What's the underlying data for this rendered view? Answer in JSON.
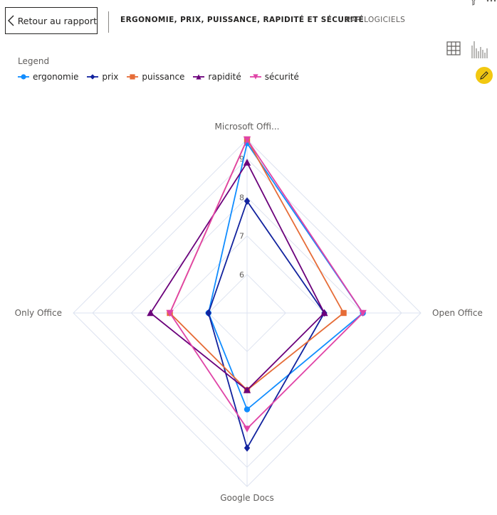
{
  "header": {
    "back_label": "Retour au rapport",
    "title": "ERGONOMIE, PRIX, PUISSANCE, RAPIDITÉ ET SÉCURITÉ",
    "subtitle": "PAR LOGICIELS"
  },
  "legend": {
    "title": "Legend"
  },
  "chart_data": {
    "type": "radar",
    "axes": [
      "Microsoft Offi...",
      "Open Office",
      "Google Docs",
      "Only Office"
    ],
    "ticks": [
      "6",
      "7",
      "8",
      "9"
    ],
    "range": [
      5,
      9.5
    ],
    "series": [
      {
        "name": "ergonomie",
        "color": "#118DFF",
        "marker": "circle",
        "values": [
          9.4,
          8.0,
          7.5,
          6.0
        ]
      },
      {
        "name": "prix",
        "color": "#12239E",
        "marker": "diamond",
        "values": [
          7.9,
          7.0,
          8.5,
          6.0
        ]
      },
      {
        "name": "puissance",
        "color": "#E66C37",
        "marker": "square",
        "values": [
          9.5,
          7.5,
          7.0,
          7.0
        ]
      },
      {
        "name": "rapidité",
        "color": "#6B007B",
        "marker": "triangle",
        "values": [
          8.9,
          7.0,
          7.0,
          7.5
        ]
      },
      {
        "name": "sécurité",
        "color": "#E044A7",
        "marker": "triangle-down",
        "values": [
          9.5,
          8.0,
          8.0,
          7.0
        ]
      }
    ]
  }
}
